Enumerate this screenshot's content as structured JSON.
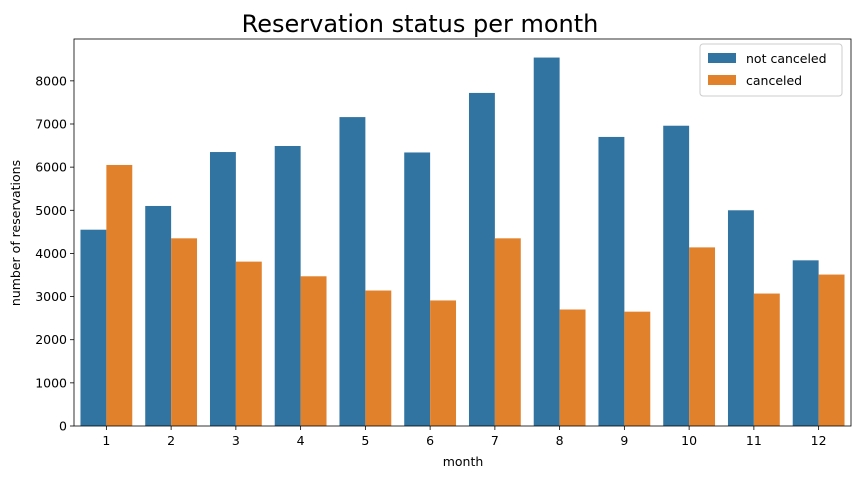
{
  "chart_data": {
    "type": "bar",
    "title": "Reservation status per month",
    "xlabel": "month",
    "ylabel": "number of reservations",
    "categories": [
      "1",
      "2",
      "3",
      "4",
      "5",
      "6",
      "7",
      "8",
      "9",
      "10",
      "11",
      "12"
    ],
    "series": [
      {
        "name": "not canceled",
        "color": "#3274a1",
        "values": [
          4550,
          5100,
          6350,
          6490,
          7160,
          6340,
          7720,
          8540,
          6700,
          6960,
          5000,
          3840
        ]
      },
      {
        "name": "canceled",
        "color": "#e1812c",
        "values": [
          6050,
          4350,
          3810,
          3470,
          3140,
          2910,
          4350,
          2700,
          2650,
          4140,
          3070,
          3510
        ]
      }
    ],
    "ylim": [
      0,
      8970
    ],
    "yticks": [
      0,
      1000,
      2000,
      3000,
      4000,
      5000,
      6000,
      7000,
      8000
    ],
    "grid": false,
    "legend_position": "top-right"
  }
}
